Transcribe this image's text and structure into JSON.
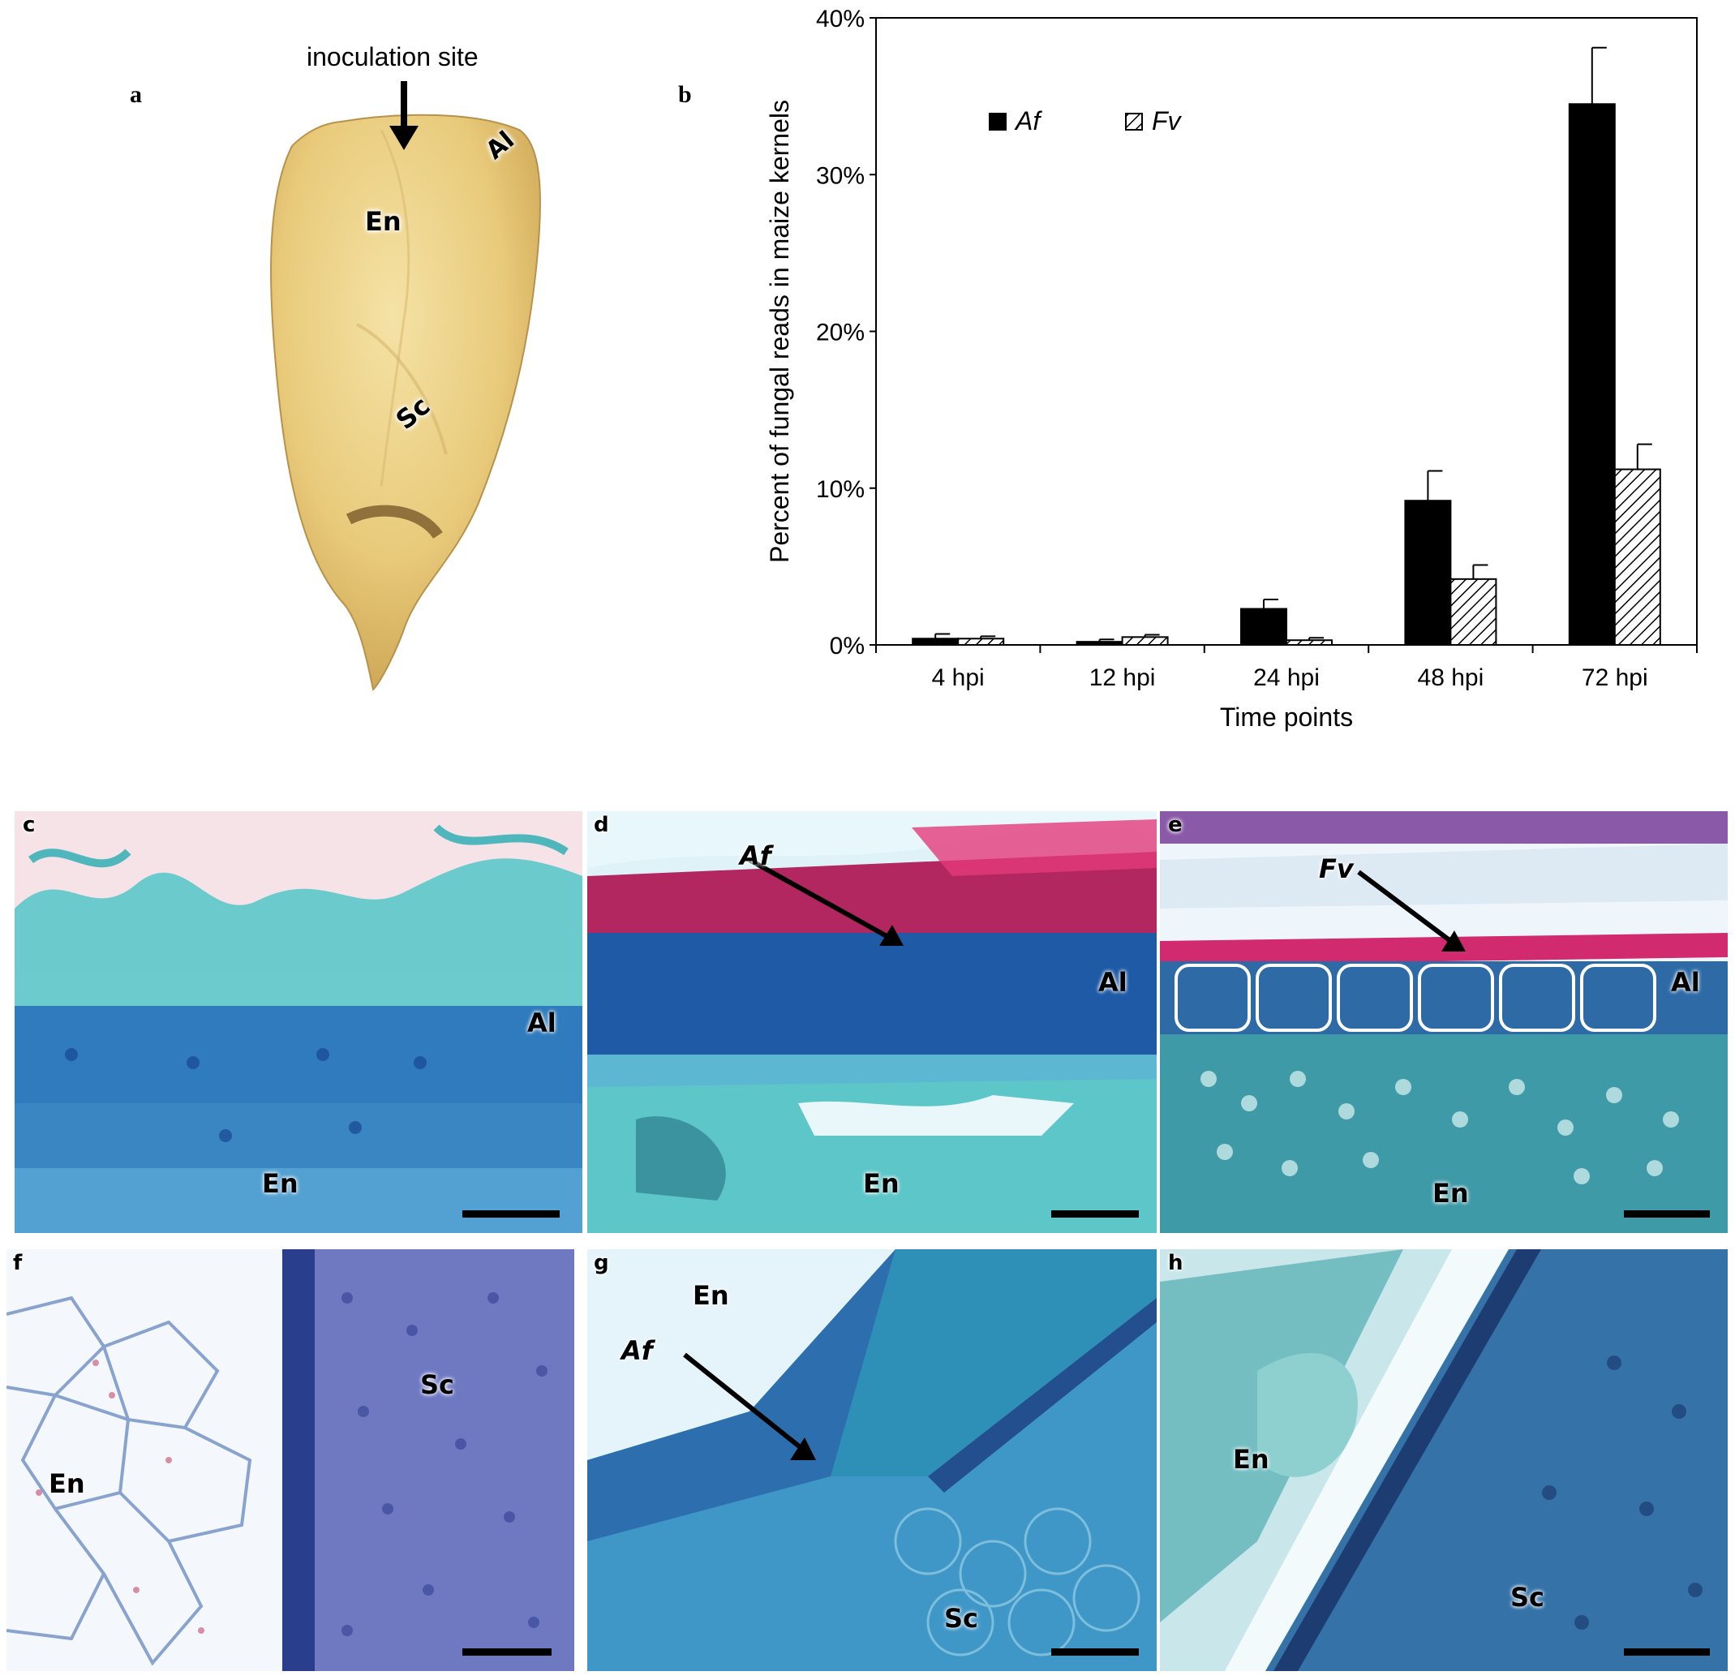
{
  "panel_a": {
    "letter": "a",
    "inoculation_label": "inoculation site",
    "labels": {
      "al": "Al",
      "en": "En",
      "sc": "Sc"
    }
  },
  "panel_b": {
    "letter": "b"
  },
  "chart_data": {
    "type": "bar",
    "categories": [
      "4 hpi",
      "12 hpi",
      "24 hpi",
      "48 hpi",
      "72 hpi"
    ],
    "series": [
      {
        "name": "Af",
        "values": [
          0.4,
          0.2,
          2.3,
          9.2,
          34.5
        ],
        "errors": [
          0.3,
          0.15,
          0.6,
          1.9,
          3.6
        ],
        "color": "#000000",
        "fill": "solid"
      },
      {
        "name": "Fv",
        "values": [
          0.4,
          0.5,
          0.3,
          4.2,
          11.2
        ],
        "errors": [
          0.15,
          0.15,
          0.15,
          0.9,
          1.6
        ],
        "color": "#000000",
        "fill": "hatched"
      }
    ],
    "ylim": [
      0,
      40
    ],
    "yticks": [
      "0%",
      "10%",
      "20%",
      "30%",
      "40%"
    ],
    "ytick_values": [
      0,
      10,
      20,
      30,
      40
    ],
    "ylabel": "Percent of fungal reads in maize kernels",
    "xlabel": "Time  points",
    "legend_position": "top-left, inside plot",
    "grid": false
  },
  "micrographs": [
    {
      "id": "c",
      "letter": "c",
      "labels": {
        "al": "Al",
        "en": "En"
      }
    },
    {
      "id": "d",
      "letter": "d",
      "arrow_label": "Af",
      "labels": {
        "al": "Al",
        "en": "En"
      }
    },
    {
      "id": "e",
      "letter": "e",
      "arrow_label": "Fv",
      "labels": {
        "al": "Al",
        "en": "En"
      }
    },
    {
      "id": "f",
      "letter": "f",
      "labels": {
        "en": "En",
        "sc": "Sc"
      }
    },
    {
      "id": "g",
      "letter": "g",
      "arrow_label": "Af",
      "labels": {
        "en": "En",
        "sc": "Sc"
      }
    },
    {
      "id": "h",
      "letter": "h",
      "labels": {
        "en": "En",
        "sc": "Sc"
      }
    }
  ],
  "colors": {
    "kernel": "#e9cf86",
    "stain_blue": "#2f8fc4",
    "stain_teal": "#5cc6c8",
    "stain_dark": "#1c4f97",
    "stain_magenta": "#d12a6f",
    "stain_purple": "#6a6bbd"
  }
}
